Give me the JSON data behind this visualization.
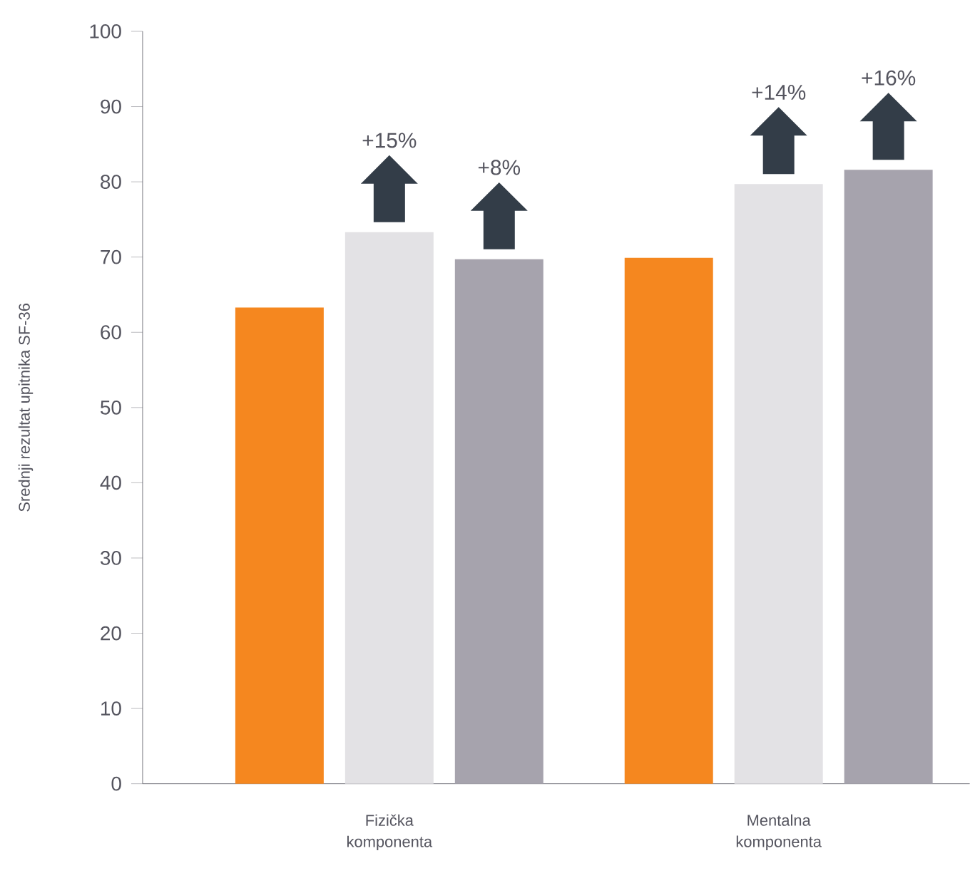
{
  "chart_data": {
    "type": "bar",
    "ylabel": "Srednji rezultat upitnika SF-36",
    "categories": [
      "Fizička komponenta",
      "Mentalna komponenta"
    ],
    "series": [
      {
        "color": "#f5871f",
        "values": [
          63.3,
          69.9
        ]
      },
      {
        "color": "#e3e2e5",
        "values": [
          73.3,
          79.7
        ]
      },
      {
        "color": "#a6a3ad",
        "values": [
          69.7,
          81.6
        ]
      }
    ],
    "ylim": [
      0,
      100
    ],
    "yticks": [
      0,
      10,
      20,
      30,
      40,
      50,
      60,
      70,
      80,
      90,
      100
    ],
    "annotations": [
      "+15%",
      "+8%",
      "+14%",
      "+16%"
    ]
  }
}
